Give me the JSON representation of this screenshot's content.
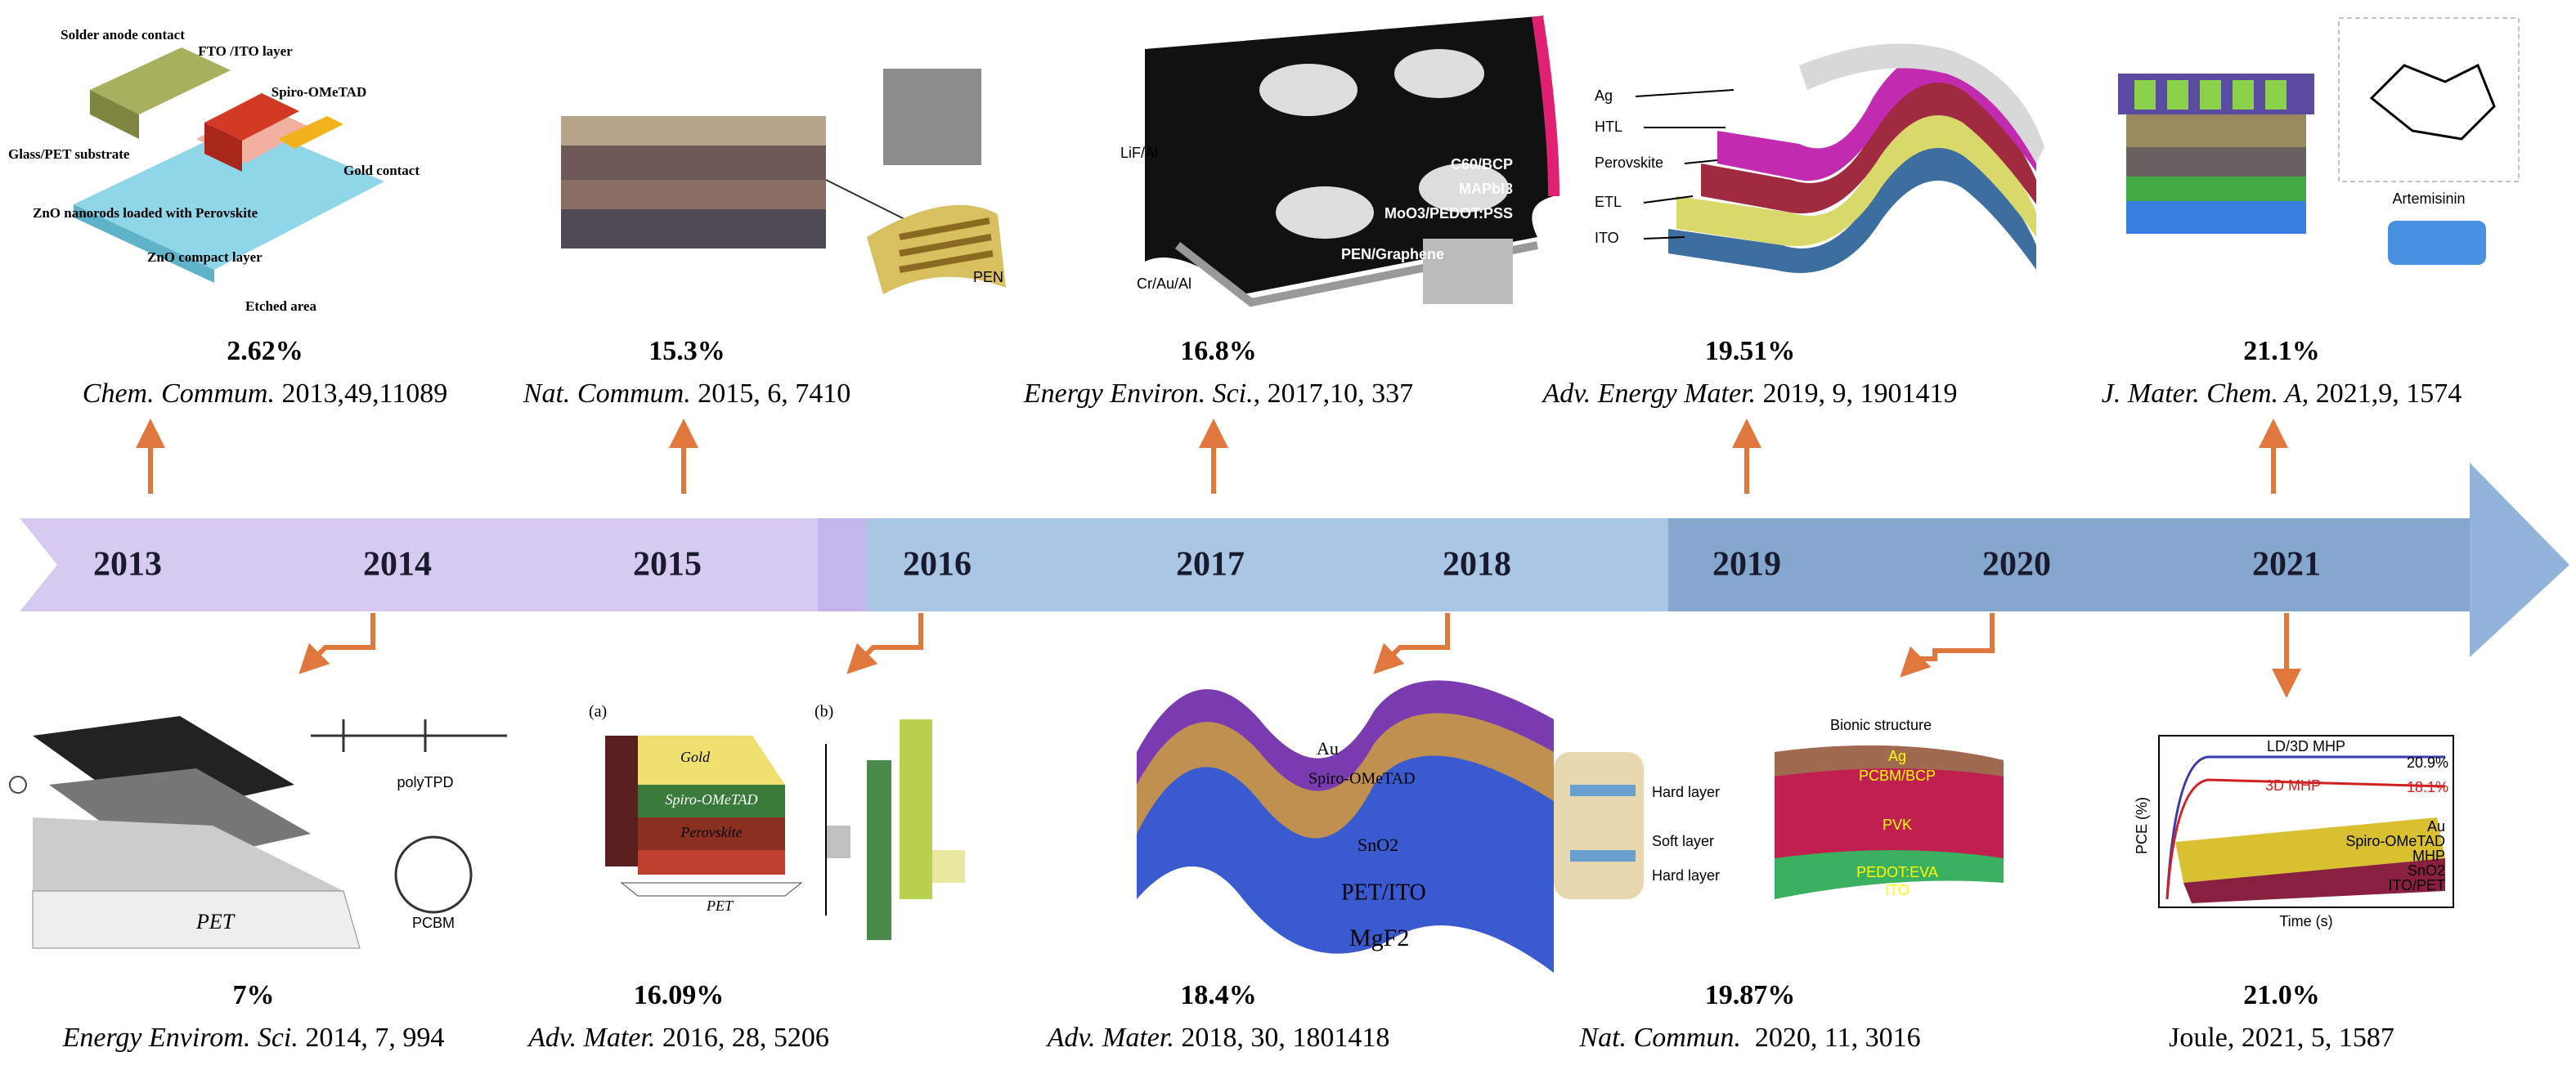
{
  "timeline": {
    "years": [
      "2013",
      "2014",
      "2015",
      "2016",
      "2017",
      "2018",
      "2019",
      "2020",
      "2021"
    ]
  },
  "top": [
    {
      "efficiency": "2.62%",
      "journal": "Chem. Commum.",
      "details": " 2013,49,11089",
      "labels": [
        "Solder anode contact",
        "FTO /ITO layer",
        "Spiro-OMeTAD",
        "Glass/PET substrate",
        "Gold contact",
        "ZnO nanorods loaded with Perovskite",
        "ZnO compact layer",
        "Etched area"
      ]
    },
    {
      "efficiency": "15.3%",
      "journal": "Nat. Commum.",
      "details": " 2015, 6, 7410",
      "labels": [
        "PEN"
      ]
    },
    {
      "efficiency": "16.8%",
      "journal": "Energy Environ. Sci.",
      "details": ", 2017,10, 337",
      "labels": [
        "LiF/Al",
        "C60/BCP",
        "MAPbI3",
        "MoO3/PEDOT:PSS",
        "PEN/Graphene",
        "Cr/Au/Al"
      ]
    },
    {
      "efficiency": "19.51%",
      "journal": "Adv. Energy Mater.",
      "details": " 2019, 9, 1901419",
      "labels": [
        "Ag",
        "HTL",
        "Perovskite",
        "ETL",
        "ITO"
      ]
    },
    {
      "efficiency": "21.1%",
      "journal": "J. Mater. Chem. A",
      "details": ", 2021,9, 1574",
      "labels": [
        "Artemisinin"
      ]
    }
  ],
  "bottom": [
    {
      "efficiency": "7%",
      "journal": "Energy Envirom. Sci.",
      "details": " 2014, 7, 994",
      "labels": [
        "polyTPD",
        "PCBM",
        "PET"
      ]
    },
    {
      "efficiency": "16.09%",
      "journal": "Adv. Mater.",
      "details": " 2016, 28, 5206",
      "labels": [
        "(a)",
        "(b)",
        "Gold",
        "Spiro-OMeTAD",
        "Perovskite",
        "PET"
      ]
    },
    {
      "efficiency": "18.4%",
      "journal": "Adv. Mater.",
      "details": " 2018, 30, 1801418",
      "labels": [
        "Au",
        "Spiro-OMeTAD",
        "SnO2",
        "PET/ITO",
        "MgF2"
      ]
    },
    {
      "efficiency": "19.87%",
      "journal": "Nat. Commun.",
      "details": "  2020, 11, 3016",
      "labels": [
        "Bionic structure",
        "Hard layer",
        "Soft layer",
        "Hard layer",
        "Ag",
        "PCBM/BCP",
        "PVK",
        "PEDOT:EVA",
        "ITO"
      ]
    },
    {
      "efficiency": "21.0%",
      "details": "Joule, 2021, 5, 1587",
      "labels": [
        "LD/3D MHP",
        "3D MHP",
        "20.9%",
        "18.1%",
        "PCE (%)",
        "Time (s)",
        "Au",
        "Spiro-OMeTAD",
        "MHP",
        "SnO2",
        "ITO/PET"
      ]
    }
  ]
}
